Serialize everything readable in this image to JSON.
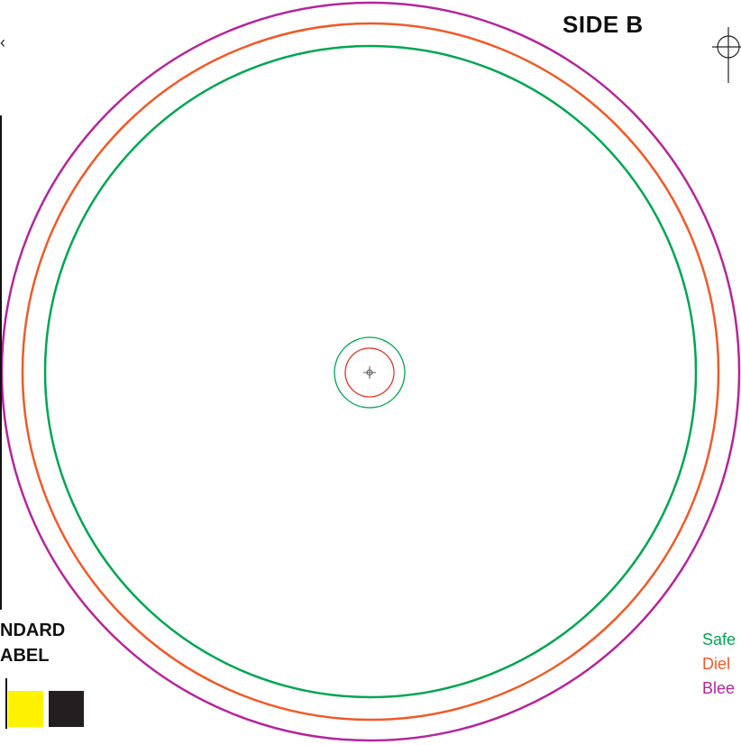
{
  "title": "SIDE B",
  "corner_mark": "‹",
  "side_label": {
    "line1": "NDARD",
    "line2": "ABEL"
  },
  "legend": [
    {
      "label": "Safe",
      "color": "#00a651"
    },
    {
      "label": "Diel",
      "color": "#f05a28"
    },
    {
      "label": "Blee",
      "color": "#b5259a"
    }
  ],
  "colors": {
    "bleed": "#b5259a",
    "die": "#f05a28",
    "safe": "#00a651",
    "swatch_yellow": "#fff200",
    "swatch_black": "#231f20"
  }
}
